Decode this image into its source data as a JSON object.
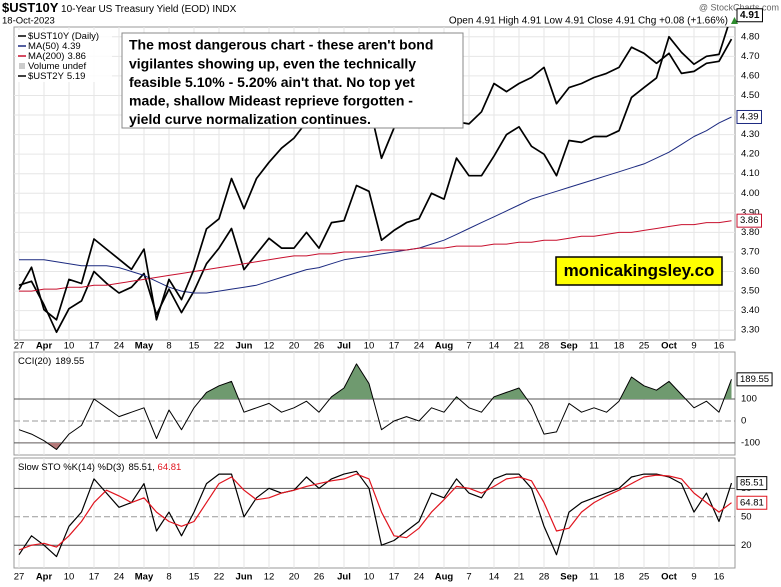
{
  "header": {
    "symbol": "$UST10Y",
    "description": "10-Year US Treasury Yield (EOD) INDX",
    "date": "18-Oct-2023",
    "quote": "Open 4.91 High 4.91 Low 4.91 Close 4.91 Chg +0.08 (+1.66%)",
    "source": "@ StockCharts.com"
  },
  "chart_data": [
    {
      "type": "line",
      "categories": [
        "27",
        null,
        "Apr",
        null,
        "10",
        null,
        "17",
        null,
        "24",
        null,
        "May",
        null,
        "8",
        null,
        "15",
        null,
        "22",
        null,
        "Jun",
        null,
        "12",
        null,
        "20",
        null,
        "26",
        null,
        "Jul",
        null,
        "10",
        null,
        "17",
        null,
        "24",
        null,
        "Aug",
        null,
        "7",
        null,
        "14",
        null,
        "21",
        null,
        "28",
        null,
        "Sep",
        null,
        "11",
        null,
        "18",
        null,
        "25",
        null,
        "Oct",
        null,
        "9",
        null,
        "16",
        null
      ],
      "ylim": [
        3.25,
        4.85
      ],
      "yticks": [
        {
          "value": 3.3,
          "label": "3.30"
        },
        {
          "value": 3.4,
          "label": "3.40"
        },
        {
          "value": 3.5,
          "label": "3.50"
        },
        {
          "value": 3.6,
          "label": "3.60"
        },
        {
          "value": 3.7,
          "label": "3.70"
        },
        {
          "value": 3.8,
          "label": "3.80"
        },
        {
          "value": 3.9,
          "label": "3.90"
        },
        {
          "value": 4.0,
          "label": "4.00"
        },
        {
          "value": 4.1,
          "label": "4.10"
        },
        {
          "value": 4.2,
          "label": "4.20"
        },
        {
          "value": 4.3,
          "label": "4.30"
        },
        {
          "value": 4.4,
          "label": "4.40"
        },
        {
          "value": 4.5,
          "label": "4.50"
        },
        {
          "value": 4.6,
          "label": "4.60"
        },
        {
          "value": 4.7,
          "label": "4.70"
        },
        {
          "value": 4.8,
          "label": "4.80"
        }
      ],
      "y2lim": [
        3.7,
        5.25
      ],
      "grid": true,
      "legend": "top-left",
      "legend_extra": "Volume undef",
      "series": [
        {
          "name": "$UST10Y (Daily)",
          "color": "#000000",
          "width": 1.7,
          "last_label": true,
          "values": [
            3.53,
            3.55,
            3.43,
            3.29,
            3.41,
            3.45,
            3.6,
            3.54,
            3.49,
            3.52,
            3.59,
            3.38,
            3.51,
            3.39,
            3.5,
            3.64,
            3.72,
            3.82,
            3.61,
            3.69,
            3.77,
            3.72,
            3.72,
            3.8,
            3.72,
            3.85,
            3.86,
            4.04,
            4.01,
            3.76,
            3.81,
            3.85,
            3.87,
            4.0,
            3.97,
            4.18,
            4.09,
            4.09,
            4.19,
            4.3,
            4.34,
            4.24,
            4.2,
            4.09,
            4.27,
            4.26,
            4.29,
            4.29,
            4.32,
            4.49,
            4.54,
            4.59,
            4.8,
            4.72,
            4.66,
            4.7,
            4.71,
            4.91
          ]
        },
        {
          "name": "MA(50)",
          "color": "#1c2a80",
          "width": 1,
          "last_label": true,
          "legend_value": true,
          "values": [
            3.66,
            3.66,
            3.66,
            3.65,
            3.64,
            3.63,
            3.63,
            3.63,
            3.62,
            3.6,
            3.58,
            3.55,
            3.52,
            3.5,
            3.49,
            3.49,
            3.5,
            3.51,
            3.52,
            3.53,
            3.55,
            3.57,
            3.59,
            3.61,
            3.62,
            3.64,
            3.66,
            3.67,
            3.68,
            3.69,
            3.7,
            3.71,
            3.72,
            3.74,
            3.76,
            3.79,
            3.82,
            3.85,
            3.88,
            3.91,
            3.94,
            3.97,
            3.99,
            4.01,
            4.03,
            4.05,
            4.07,
            4.09,
            4.11,
            4.13,
            4.15,
            4.18,
            4.21,
            4.25,
            4.29,
            4.32,
            4.36,
            4.39
          ]
        },
        {
          "name": "MA(200)",
          "color": "#c8102e",
          "width": 1,
          "last_label": true,
          "legend_value": true,
          "values": [
            3.5,
            3.5,
            3.51,
            3.51,
            3.52,
            3.52,
            3.53,
            3.53,
            3.54,
            3.55,
            3.56,
            3.57,
            3.58,
            3.59,
            3.6,
            3.61,
            3.62,
            3.63,
            3.64,
            3.65,
            3.66,
            3.67,
            3.68,
            3.68,
            3.69,
            3.69,
            3.7,
            3.7,
            3.7,
            3.71,
            3.71,
            3.71,
            3.72,
            3.72,
            3.72,
            3.73,
            3.73,
            3.73,
            3.74,
            3.74,
            3.75,
            3.75,
            3.76,
            3.76,
            3.77,
            3.78,
            3.78,
            3.79,
            3.8,
            3.8,
            3.81,
            3.82,
            3.83,
            3.84,
            3.84,
            3.85,
            3.85,
            3.86
          ]
        },
        {
          "name": "$UST2Y",
          "color": "#000000",
          "width": 1.7,
          "axis": "y2",
          "legend_value": true,
          "values": [
            3.95,
            4.06,
            3.85,
            3.8,
            4.0,
            3.98,
            4.2,
            4.15,
            4.1,
            4.05,
            4.15,
            3.8,
            4.0,
            3.9,
            4.05,
            4.25,
            4.3,
            4.5,
            4.35,
            4.5,
            4.58,
            4.65,
            4.7,
            4.78,
            4.75,
            4.88,
            4.94,
            5.0,
            4.87,
            4.6,
            4.75,
            4.8,
            4.86,
            4.88,
            4.88,
            4.78,
            4.77,
            4.83,
            4.97,
            4.93,
            4.97,
            5.0,
            5.05,
            4.87,
            4.95,
            4.97,
            5.0,
            5.02,
            5.05,
            5.15,
            5.12,
            5.07,
            5.12,
            5.02,
            5.03,
            5.07,
            5.08,
            5.19
          ]
        }
      ],
      "annotation": [
        "The most dangerous chart - these aren't bond",
        "vigilantes showing up, even the technically",
        "feasible 5.10% - 5.20% ain't that. No top yet",
        "made, shallow Mideast reprieve forgotten -",
        "yield curve normalization continues."
      ],
      "watermark": "monicakingsley.co"
    },
    {
      "type": "line",
      "title": "CCI(20)",
      "ylim": [
        -155,
        314
      ],
      "yticks": [
        -100,
        0,
        100
      ],
      "ytick_styles": [
        "solid",
        "dashed",
        "solid"
      ],
      "fill_colors": {
        "above": "#6f9a6f",
        "below": "#b57a7a"
      },
      "series": [
        {
          "color": "#000000",
          "width": 1,
          "last_label": true,
          "values": [
            -40,
            -60,
            -90,
            -130,
            -60,
            -20,
            100,
            60,
            20,
            40,
            60,
            -80,
            50,
            -40,
            60,
            130,
            160,
            180,
            40,
            60,
            80,
            40,
            60,
            90,
            40,
            110,
            150,
            260,
            170,
            -40,
            0,
            20,
            0,
            60,
            40,
            110,
            60,
            40,
            110,
            130,
            150,
            70,
            -60,
            -50,
            80,
            40,
            60,
            40,
            90,
            200,
            160,
            140,
            180,
            120,
            60,
            90,
            40,
            189.55
          ]
        }
      ]
    },
    {
      "type": "line",
      "title": "Slow STO %K(14) %D(3)",
      "title_separator": ", ",
      "ylim": [
        -4,
        112
      ],
      "yticks": [
        20,
        50,
        80
      ],
      "ytick_styles": [
        "solid",
        "dashed",
        "solid"
      ],
      "x_labels": true,
      "series": [
        {
          "color": "#000000",
          "width": 1.2,
          "last_label": true,
          "values": [
            10,
            30,
            20,
            8,
            40,
            55,
            90,
            75,
            60,
            65,
            85,
            35,
            55,
            30,
            55,
            85,
            95,
            95,
            50,
            70,
            80,
            75,
            78,
            92,
            80,
            90,
            95,
            98,
            80,
            20,
            25,
            35,
            45,
            75,
            70,
            90,
            75,
            70,
            90,
            95,
            95,
            80,
            40,
            10,
            55,
            65,
            70,
            75,
            80,
            92,
            95,
            95,
            92,
            85,
            55,
            75,
            45,
            85.51
          ]
        },
        {
          "color": "#e0141e",
          "width": 1.2,
          "last_label": true,
          "values": [
            15,
            20,
            22,
            18,
            30,
            45,
            65,
            78,
            72,
            65,
            70,
            55,
            45,
            40,
            45,
            65,
            85,
            92,
            78,
            68,
            70,
            75,
            78,
            82,
            85,
            88,
            90,
            95,
            90,
            55,
            30,
            28,
            38,
            55,
            68,
            82,
            80,
            75,
            82,
            90,
            92,
            88,
            65,
            35,
            38,
            55,
            65,
            72,
            78,
            85,
            92,
            94,
            93,
            90,
            75,
            65,
            55,
            64.81
          ]
        }
      ]
    }
  ]
}
